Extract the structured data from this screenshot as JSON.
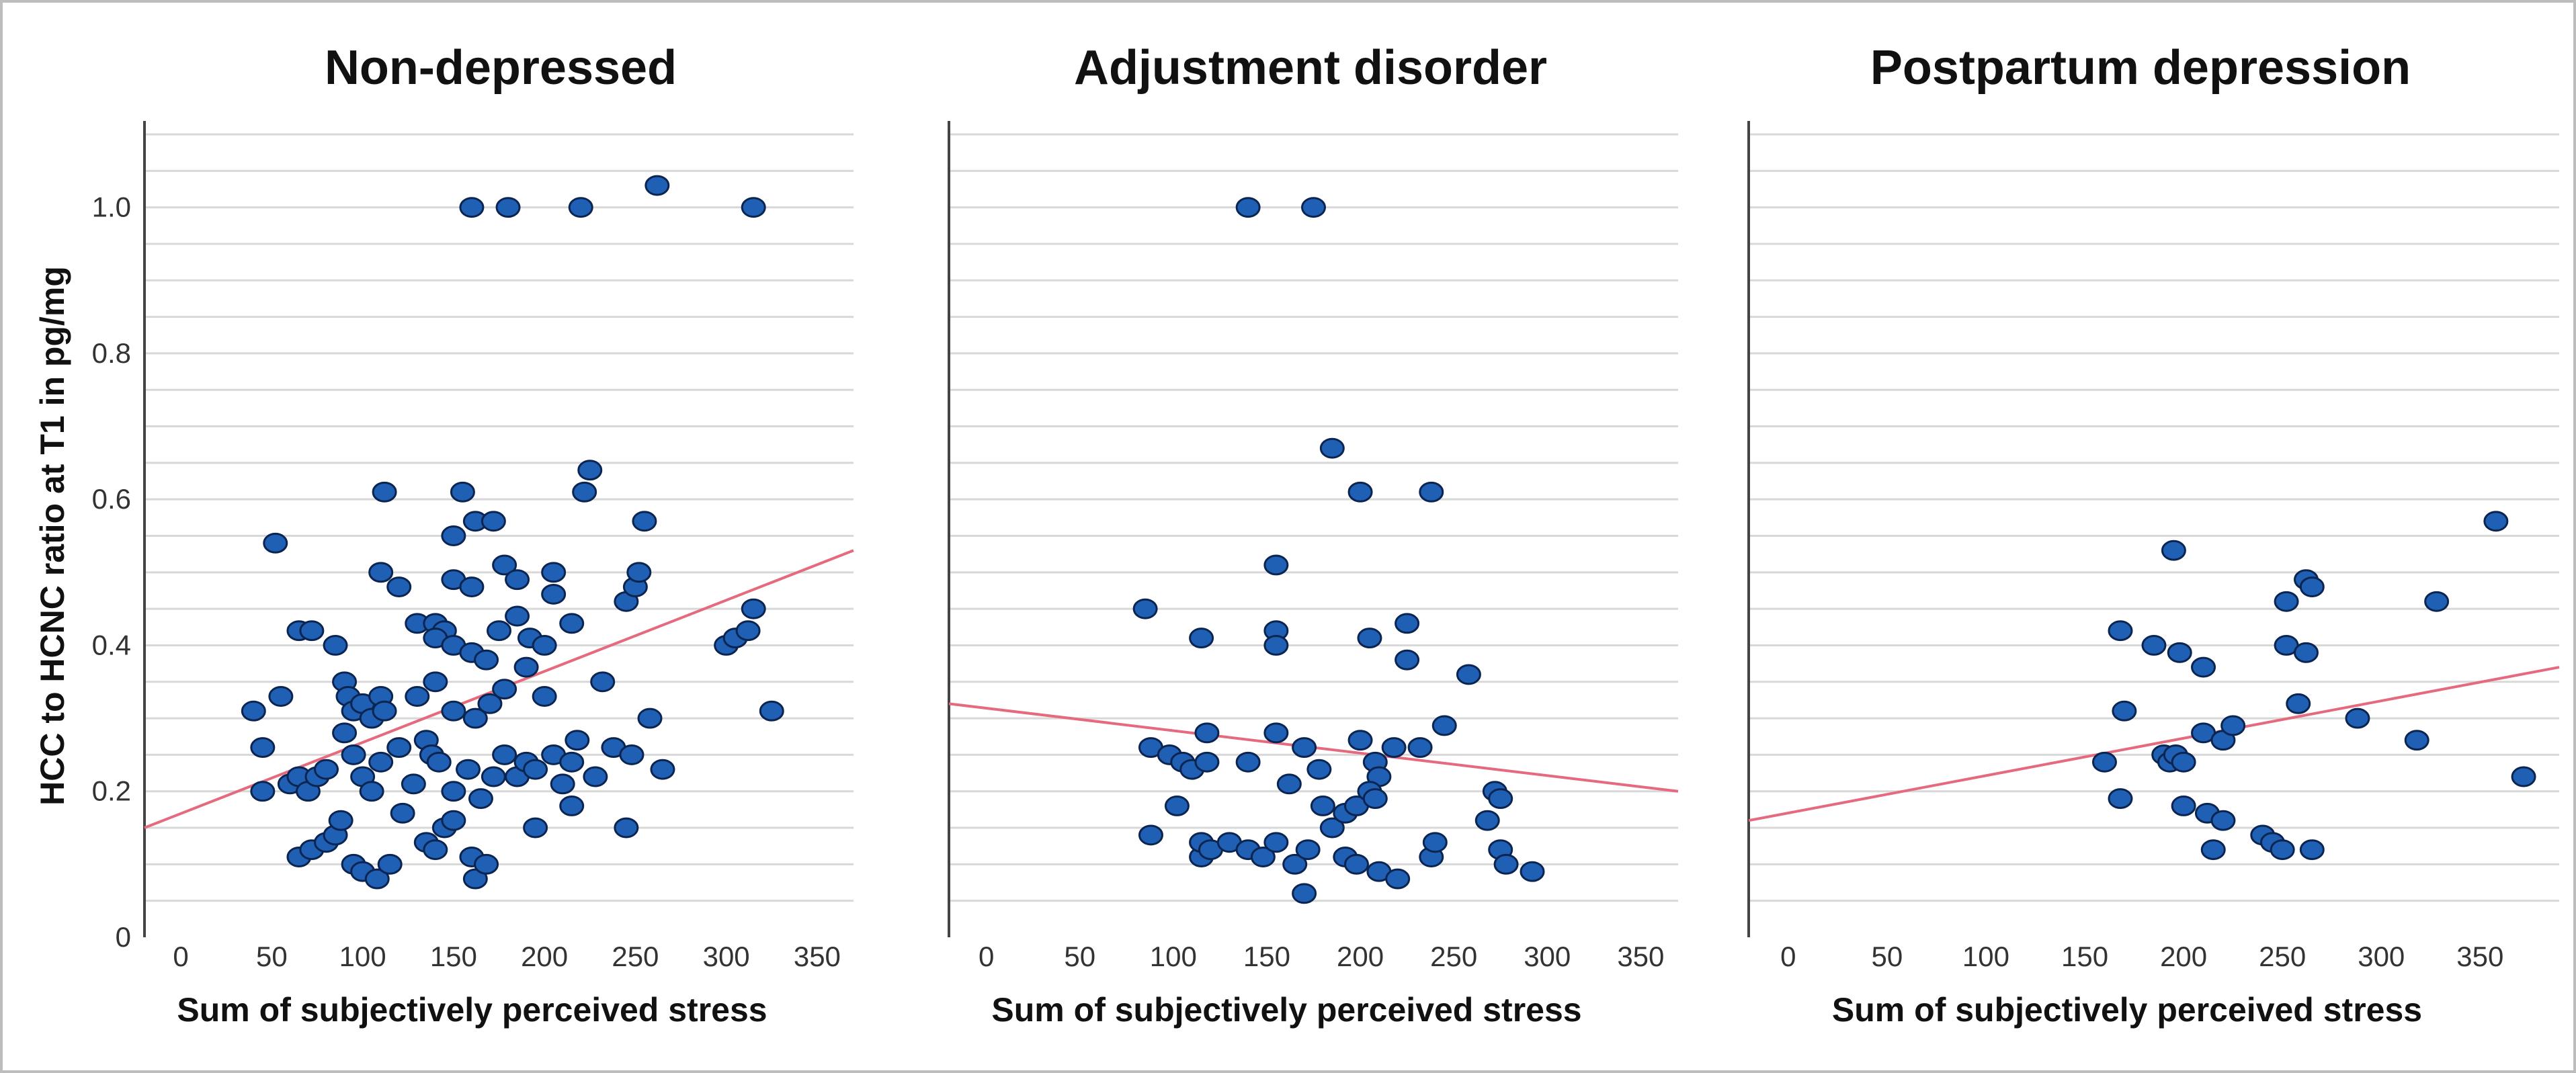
{
  "chart_data": {
    "type": "scatter",
    "y_axis_label": "HCC to HCNC ratio at T1 in pg/mg",
    "ylim": [
      0,
      1.1
    ],
    "y_ticks": [
      0,
      0.2,
      0.4,
      0.6,
      0.8,
      1.0
    ],
    "y_tick_labels": [
      "0",
      "0.2",
      "0.4",
      "0.6",
      "0.8",
      "1.0"
    ],
    "grid": true,
    "panels": [
      {
        "title": "Non-depressed",
        "xlabel": "Sum of subjectively perceived stress",
        "xlim": [
          -20,
          370
        ],
        "x_ticks": [
          0,
          50,
          100,
          150,
          200,
          250,
          300,
          350
        ],
        "x_tick_labels": [
          "0",
          "50",
          "100",
          "150",
          "200",
          "250",
          "300",
          "350"
        ],
        "fit_line": {
          "x": [
            -20,
            370
          ],
          "y": [
            0.15,
            0.53
          ]
        },
        "points": [
          [
            160,
            1.0
          ],
          [
            180,
            1.0
          ],
          [
            220,
            1.0
          ],
          [
            262,
            1.03
          ],
          [
            315,
            1.0
          ],
          [
            112,
            0.61
          ],
          [
            155,
            0.61
          ],
          [
            222,
            0.61
          ],
          [
            225,
            0.64
          ],
          [
            52,
            0.54
          ],
          [
            162,
            0.57
          ],
          [
            172,
            0.57
          ],
          [
            255,
            0.57
          ],
          [
            150,
            0.55
          ],
          [
            178,
            0.51
          ],
          [
            185,
            0.49
          ],
          [
            205,
            0.5
          ],
          [
            110,
            0.5
          ],
          [
            120,
            0.48
          ],
          [
            150,
            0.49
          ],
          [
            160,
            0.48
          ],
          [
            205,
            0.47
          ],
          [
            245,
            0.46
          ],
          [
            250,
            0.48
          ],
          [
            252,
            0.5
          ],
          [
            65,
            0.42
          ],
          [
            72,
            0.42
          ],
          [
            85,
            0.4
          ],
          [
            130,
            0.43
          ],
          [
            140,
            0.43
          ],
          [
            145,
            0.42
          ],
          [
            140,
            0.41
          ],
          [
            150,
            0.4
          ],
          [
            160,
            0.39
          ],
          [
            168,
            0.38
          ],
          [
            175,
            0.42
          ],
          [
            185,
            0.44
          ],
          [
            192,
            0.41
          ],
          [
            200,
            0.4
          ],
          [
            215,
            0.43
          ],
          [
            232,
            0.35
          ],
          [
            300,
            0.4
          ],
          [
            305,
            0.41
          ],
          [
            312,
            0.42
          ],
          [
            315,
            0.45
          ],
          [
            40,
            0.31
          ],
          [
            45,
            0.26
          ],
          [
            55,
            0.33
          ],
          [
            90,
            0.35
          ],
          [
            92,
            0.33
          ],
          [
            95,
            0.31
          ],
          [
            100,
            0.32
          ],
          [
            105,
            0.3
          ],
          [
            110,
            0.33
          ],
          [
            112,
            0.31
          ],
          [
            130,
            0.33
          ],
          [
            140,
            0.35
          ],
          [
            150,
            0.31
          ],
          [
            162,
            0.3
          ],
          [
            170,
            0.32
          ],
          [
            178,
            0.34
          ],
          [
            190,
            0.37
          ],
          [
            200,
            0.33
          ],
          [
            258,
            0.3
          ],
          [
            325,
            0.31
          ],
          [
            45,
            0.2
          ],
          [
            60,
            0.21
          ],
          [
            65,
            0.22
          ],
          [
            70,
            0.2
          ],
          [
            75,
            0.22
          ],
          [
            80,
            0.23
          ],
          [
            90,
            0.28
          ],
          [
            95,
            0.25
          ],
          [
            100,
            0.22
          ],
          [
            105,
            0.2
          ],
          [
            110,
            0.24
          ],
          [
            120,
            0.26
          ],
          [
            128,
            0.21
          ],
          [
            135,
            0.27
          ],
          [
            138,
            0.25
          ],
          [
            142,
            0.24
          ],
          [
            150,
            0.2
          ],
          [
            158,
            0.23
          ],
          [
            165,
            0.19
          ],
          [
            172,
            0.22
          ],
          [
            178,
            0.25
          ],
          [
            185,
            0.22
          ],
          [
            190,
            0.24
          ],
          [
            195,
            0.23
          ],
          [
            205,
            0.25
          ],
          [
            210,
            0.21
          ],
          [
            215,
            0.24
          ],
          [
            218,
            0.27
          ],
          [
            228,
            0.22
          ],
          [
            238,
            0.26
          ],
          [
            248,
            0.25
          ],
          [
            265,
            0.23
          ],
          [
            65,
            0.11
          ],
          [
            72,
            0.12
          ],
          [
            80,
            0.13
          ],
          [
            85,
            0.14
          ],
          [
            88,
            0.16
          ],
          [
            95,
            0.1
          ],
          [
            100,
            0.09
          ],
          [
            108,
            0.08
          ],
          [
            115,
            0.1
          ],
          [
            122,
            0.17
          ],
          [
            135,
            0.13
          ],
          [
            140,
            0.12
          ],
          [
            145,
            0.15
          ],
          [
            150,
            0.16
          ],
          [
            160,
            0.11
          ],
          [
            162,
            0.08
          ],
          [
            168,
            0.1
          ],
          [
            195,
            0.15
          ],
          [
            215,
            0.18
          ],
          [
            245,
            0.15
          ]
        ]
      },
      {
        "title": "Adjustment disorder",
        "xlabel": "Sum of subjectively perceived stress",
        "xlim": [
          -20,
          370
        ],
        "x_ticks": [
          0,
          50,
          100,
          150,
          200,
          250,
          300,
          350
        ],
        "x_tick_labels": [
          "0",
          "50",
          "100",
          "150",
          "200",
          "250",
          "300",
          "350"
        ],
        "fit_line": {
          "x": [
            -20,
            370
          ],
          "y": [
            0.32,
            0.2
          ]
        },
        "points": [
          [
            140,
            1.0
          ],
          [
            175,
            1.0
          ],
          [
            185,
            0.67
          ],
          [
            200,
            0.61
          ],
          [
            238,
            0.61
          ],
          [
            155,
            0.51
          ],
          [
            85,
            0.45
          ],
          [
            115,
            0.41
          ],
          [
            155,
            0.42
          ],
          [
            155,
            0.4
          ],
          [
            205,
            0.41
          ],
          [
            225,
            0.43
          ],
          [
            225,
            0.38
          ],
          [
            258,
            0.36
          ],
          [
            88,
            0.26
          ],
          [
            98,
            0.25
          ],
          [
            105,
            0.24
          ],
          [
            110,
            0.23
          ],
          [
            118,
            0.28
          ],
          [
            118,
            0.24
          ],
          [
            140,
            0.24
          ],
          [
            155,
            0.28
          ],
          [
            170,
            0.26
          ],
          [
            178,
            0.23
          ],
          [
            200,
            0.27
          ],
          [
            208,
            0.24
          ],
          [
            210,
            0.22
          ],
          [
            218,
            0.26
          ],
          [
            232,
            0.26
          ],
          [
            245,
            0.29
          ],
          [
            162,
            0.21
          ],
          [
            180,
            0.18
          ],
          [
            185,
            0.15
          ],
          [
            192,
            0.17
          ],
          [
            198,
            0.18
          ],
          [
            205,
            0.2
          ],
          [
            208,
            0.19
          ],
          [
            272,
            0.2
          ],
          [
            275,
            0.19
          ],
          [
            268,
            0.16
          ],
          [
            88,
            0.14
          ],
          [
            102,
            0.18
          ],
          [
            115,
            0.11
          ],
          [
            115,
            0.13
          ],
          [
            120,
            0.12
          ],
          [
            130,
            0.13
          ],
          [
            140,
            0.12
          ],
          [
            148,
            0.11
          ],
          [
            155,
            0.13
          ],
          [
            165,
            0.1
          ],
          [
            172,
            0.12
          ],
          [
            192,
            0.11
          ],
          [
            198,
            0.1
          ],
          [
            210,
            0.09
          ],
          [
            220,
            0.08
          ],
          [
            238,
            0.11
          ],
          [
            240,
            0.13
          ],
          [
            275,
            0.12
          ],
          [
            278,
            0.1
          ],
          [
            292,
            0.09
          ],
          [
            170,
            0.06
          ]
        ]
      },
      {
        "title": "Postpartum depression",
        "xlabel": "Sum of subjectively perceived stress",
        "xlim": [
          -20,
          390
        ],
        "x_ticks": [
          0,
          50,
          100,
          150,
          200,
          250,
          300,
          350
        ],
        "x_tick_labels": [
          "0",
          "50",
          "100",
          "150",
          "200",
          "250",
          "300",
          "350"
        ],
        "fit_line": {
          "x": [
            -20,
            390
          ],
          "y": [
            0.16,
            0.37
          ]
        },
        "points": [
          [
            358,
            0.57
          ],
          [
            195,
            0.53
          ],
          [
            262,
            0.49
          ],
          [
            265,
            0.48
          ],
          [
            252,
            0.46
          ],
          [
            328,
            0.46
          ],
          [
            168,
            0.42
          ],
          [
            185,
            0.4
          ],
          [
            198,
            0.39
          ],
          [
            210,
            0.37
          ],
          [
            252,
            0.4
          ],
          [
            262,
            0.39
          ],
          [
            170,
            0.31
          ],
          [
            210,
            0.28
          ],
          [
            220,
            0.27
          ],
          [
            225,
            0.29
          ],
          [
            258,
            0.32
          ],
          [
            288,
            0.3
          ],
          [
            318,
            0.27
          ],
          [
            160,
            0.24
          ],
          [
            190,
            0.25
          ],
          [
            193,
            0.24
          ],
          [
            196,
            0.25
          ],
          [
            200,
            0.24
          ],
          [
            372,
            0.22
          ],
          [
            168,
            0.19
          ],
          [
            200,
            0.18
          ],
          [
            212,
            0.17
          ],
          [
            220,
            0.16
          ],
          [
            240,
            0.14
          ],
          [
            245,
            0.13
          ],
          [
            250,
            0.12
          ],
          [
            265,
            0.12
          ],
          [
            215,
            0.12
          ]
        ]
      }
    ]
  }
}
